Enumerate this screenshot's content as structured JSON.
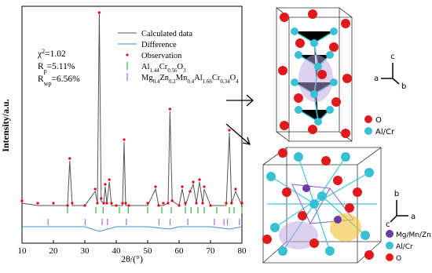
{
  "chart_data": {
    "type": "line",
    "xlabel": "2θ/(°)",
    "ylabel": "Intensity/a.u.",
    "xlim": [
      10,
      80
    ],
    "xticks": [
      10,
      20,
      30,
      40,
      50,
      60,
      70,
      80
    ],
    "ylim": [
      0,
      100
    ],
    "annotations": [
      [
        {
          "t": "χ"
        },
        {
          "t": "2",
          "sup": true
        },
        {
          "t": "=1.02"
        }
      ],
      [
        {
          "t": "R"
        },
        {
          "t": "p",
          "sub": true
        },
        {
          "t": "=5.11%"
        }
      ],
      [
        {
          "t": "R"
        },
        {
          "t": "wp",
          "sub": true
        },
        {
          "t": "=6.56%"
        }
      ]
    ],
    "series": [
      {
        "name": "Calculated data",
        "style": "line",
        "color": "#555555",
        "x": [
          10,
          15,
          20,
          24.5,
          25.2,
          26,
          30,
          33.3,
          34,
          34.6,
          35.2,
          36,
          36.5,
          37,
          37.8,
          38.5,
          40,
          42,
          42.5,
          43,
          44,
          50,
          52.5,
          53.5,
          55,
          56.5,
          57.1,
          57.8,
          60,
          61,
          62,
          63.5,
          64.5,
          65.5,
          66.5,
          67.5,
          68,
          70,
          75,
          76,
          76.7,
          78,
          80
        ],
        "values": [
          17,
          16,
          16,
          16,
          35,
          16,
          16,
          22,
          17,
          98,
          18,
          17,
          24,
          17,
          26,
          16,
          16,
          16,
          43,
          16,
          16,
          16,
          23,
          16,
          16,
          17,
          56,
          18,
          16,
          23,
          16,
          22,
          25,
          17,
          26,
          17,
          23,
          16,
          16,
          47,
          17,
          22,
          16
        ]
      },
      {
        "name": "Difference",
        "style": "line",
        "color": "#3a8fd8",
        "x": [
          10,
          20,
          30,
          34.6,
          40,
          50,
          57.1,
          60,
          70,
          76,
          80
        ],
        "values": [
          7,
          7,
          7,
          5,
          7,
          7,
          6,
          7,
          7,
          6,
          7
        ]
      },
      {
        "name": "Observation",
        "style": "points",
        "color": "#e8000b",
        "x": [
          10,
          15,
          20,
          24.5,
          25.2,
          26,
          30,
          33.3,
          34,
          34.6,
          35.2,
          36,
          36.5,
          37,
          37.8,
          38.5,
          40,
          42,
          42.5,
          43,
          44,
          50,
          52.5,
          53.5,
          55,
          56.5,
          57.1,
          57.8,
          60,
          61,
          62,
          63.5,
          64.5,
          65.5,
          66.5,
          67.5,
          68,
          70,
          75,
          76,
          76.7,
          78,
          80
        ],
        "values": [
          18,
          17,
          17,
          16,
          36,
          17,
          16,
          23,
          17,
          98,
          19,
          17,
          25,
          17,
          27,
          17,
          16,
          17,
          44,
          17,
          16,
          17,
          24,
          16,
          17,
          17,
          57,
          18,
          16,
          24,
          17,
          22,
          26,
          17,
          27,
          17,
          24,
          16,
          17,
          48,
          17,
          23,
          17
        ]
      },
      {
        "name": "Al1.44Cr0.56O3",
        "style": "ticks",
        "color": "#1aa01a",
        "x": [
          24.5,
          33.5,
          35.8,
          41,
          43.8,
          50,
          54.5,
          57.5,
          62,
          63.8,
          66,
          68,
          72,
          76,
          77.5,
          80
        ]
      },
      {
        "name": "Mg0.4Zn0.2Mn0.4Al1.66Cr0.34O4",
        "style": "ticks",
        "color": "#b040d0",
        "x": [
          18.3,
          30.1,
          35.5,
          37.2,
          43.2,
          53.6,
          57.1,
          62.8,
          71.2,
          74.3,
          75.4,
          79.2
        ]
      }
    ]
  },
  "figure": {
    "structure_labels": {
      "top_c": "c",
      "top_a": "a",
      "top_b": "b",
      "top_o": "O",
      "top_alcr": "Al/Cr",
      "bot_b": "b",
      "bot_c": "c",
      "bot_a": "a",
      "bot_mgmnzn": "Mg/Mn/Zn",
      "bot_alcr": "Al/Cr",
      "bot_o": "O"
    }
  }
}
